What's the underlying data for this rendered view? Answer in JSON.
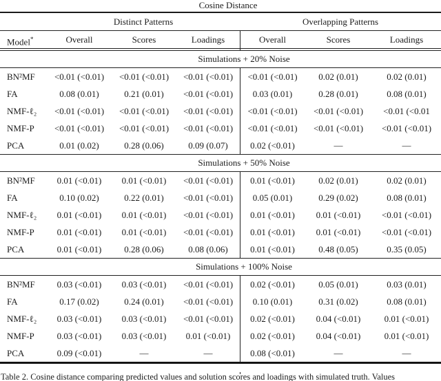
{
  "title": "Cosine Distance",
  "header": {
    "model": "Model",
    "model_sup": "*",
    "group_left": "Distinct Patterns",
    "group_right": "Overlapping Patterns",
    "subcolumns": [
      "Overall",
      "Scores",
      "Loadings"
    ]
  },
  "sections": [
    {
      "label": "Simulations + 20% Noise",
      "rows": [
        {
          "model": "BN²MF",
          "values": [
            "<0.01 (<0.01)",
            "<0.01 (<0.01)",
            "<0.01 (<0.01)",
            "<0.01 (<0.01)",
            "0.02 (0.01)",
            "0.02 (0.01)"
          ]
        },
        {
          "model": "FA",
          "values": [
            "0.08 (0.01)",
            "0.21 (0.01)",
            "<0.01 (<0.01)",
            "0.03 (0.01)",
            "0.28 (0.01)",
            "0.08 (0.01)"
          ]
        },
        {
          "model": "NMF-ℓ₂",
          "values": [
            "<0.01 (<0.01)",
            "<0.01 (<0.01)",
            "<0.01 (<0.01)",
            "<0.01 (<0.01)",
            "<0.01 (<0.01)",
            "<0.01 (<0.01"
          ]
        },
        {
          "model": "NMF-P",
          "values": [
            "<0.01 (<0.01)",
            "<0.01 (<0.01)",
            "<0.01 (<0.01)",
            "<0.01 (<0.01)",
            "<0.01 (<0.01)",
            "<0.01 (<0.01)"
          ]
        },
        {
          "model": "PCA",
          "values": [
            "0.01 (0.02)",
            "0.28 (0.06)",
            "0.09 (0.07)",
            "0.02 (<0.01)",
            "—",
            "—"
          ]
        }
      ]
    },
    {
      "label": "Simulations + 50% Noise",
      "rows": [
        {
          "model": "BN²MF",
          "values": [
            "0.01 (<0.01)",
            "0.01 (<0.01)",
            "<0.01 (<0.01)",
            "0.01 (<0.01)",
            "0.02 (0.01)",
            "0.02 (0.01)"
          ]
        },
        {
          "model": "FA",
          "values": [
            "0.10 (0.02)",
            "0.22 (0.01)",
            "<0.01 (<0.01)",
            "0.05 (0.01)",
            "0.29 (0.02)",
            "0.08 (0.01)"
          ]
        },
        {
          "model": "NMF-ℓ₂",
          "values": [
            "0.01 (<0.01)",
            "0.01 (<0.01)",
            "<0.01 (<0.01)",
            "0.01 (<0.01)",
            "0.01 (<0.01)",
            "<0.01 (<0.01)"
          ]
        },
        {
          "model": "NMF-P",
          "values": [
            "0.01 (<0.01)",
            "0.01 (<0.01)",
            "<0.01 (<0.01)",
            "0.01 (<0.01)",
            "0.01 (<0.01)",
            "<0.01 (<0.01)"
          ]
        },
        {
          "model": "PCA",
          "values": [
            "0.01 (<0.01)",
            "0.28 (0.06)",
            "0.08 (0.06)",
            "0.01 (<0.01)",
            "0.48 (0.05)",
            "0.35 (0.05)"
          ]
        }
      ]
    },
    {
      "label": "Simulations + 100% Noise",
      "rows": [
        {
          "model": "BN²MF",
          "values": [
            "0.03 (<0.01)",
            "0.03 (<0.01)",
            "<0.01 (<0.01)",
            "0.02 (<0.01)",
            "0.05 (0.01)",
            "0.03 (0.01)"
          ]
        },
        {
          "model": "FA",
          "values": [
            "0.17 (0.02)",
            "0.24 (0.01)",
            "<0.01 (<0.01)",
            "0.10 (0.01)",
            "0.31 (0.02)",
            "0.08 (0.01)"
          ]
        },
        {
          "model": "NMF-ℓ₂",
          "values": [
            "0.03 (<0.01)",
            "0.03 (<0.01)",
            "<0.01 (<0.01)",
            "0.02 (<0.01)",
            "0.04 (<0.01)",
            "0.01 (<0.01)"
          ]
        },
        {
          "model": "NMF-P",
          "values": [
            "0.03 (<0.01)",
            "0.03 (<0.01)",
            "0.01 (<0.01)",
            "0.02 (<0.01)",
            "0.04 (<0.01)",
            "0.01 (<0.01)"
          ]
        },
        {
          "model": "PCA",
          "values": [
            "0.09 (<0.01)",
            "—",
            "—",
            "0.08 (<0.01)",
            "—",
            "—"
          ]
        }
      ]
    }
  ],
  "caption": "Table 2. Cosine distance comparing predicted values and solution scores and loadings with simulated truth. Values"
}
